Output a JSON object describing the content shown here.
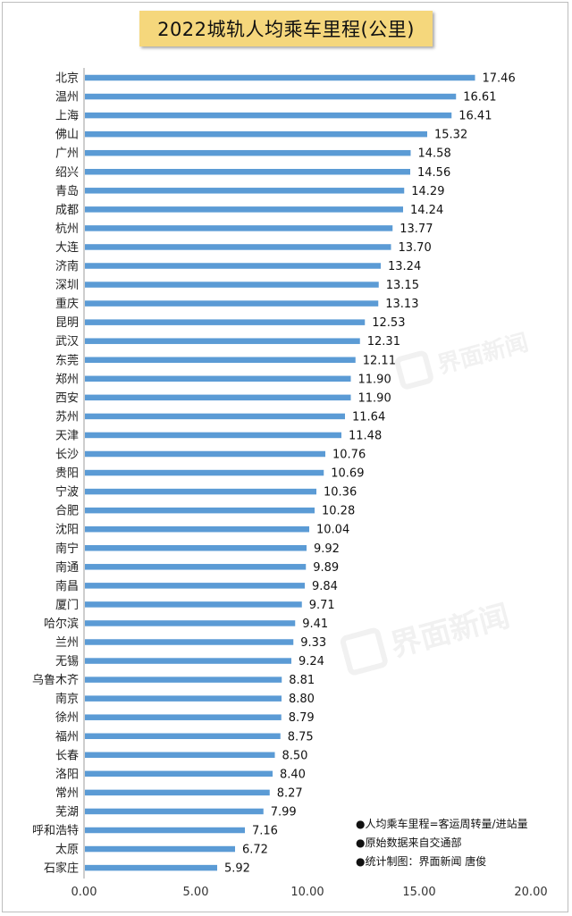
{
  "chart_data": {
    "type": "bar",
    "orientation": "horizontal",
    "title": "2022城轨人均乘车里程(公里)",
    "xlim": [
      0,
      20
    ],
    "x_ticks": [
      "0.00",
      "5.00",
      "10.00",
      "15.00",
      "20.00"
    ],
    "grid": false,
    "bar_color": "#5b9bd5",
    "categories": [
      "北京",
      "温州",
      "上海",
      "佛山",
      "广州",
      "绍兴",
      "青岛",
      "成都",
      "杭州",
      "大连",
      "济南",
      "深圳",
      "重庆",
      "昆明",
      "武汉",
      "东莞",
      "郑州",
      "西安",
      "苏州",
      "天津",
      "长沙",
      "贵阳",
      "宁波",
      "合肥",
      "沈阳",
      "南宁",
      "南通",
      "南昌",
      "厦门",
      "哈尔滨",
      "兰州",
      "无锡",
      "乌鲁木齐",
      "南京",
      "徐州",
      "福州",
      "长春",
      "洛阳",
      "常州",
      "芜湖",
      "呼和浩特",
      "太原",
      "石家庄"
    ],
    "values": [
      17.46,
      16.61,
      16.41,
      15.32,
      14.58,
      14.56,
      14.29,
      14.24,
      13.77,
      13.7,
      13.24,
      13.15,
      13.13,
      12.53,
      12.31,
      12.11,
      11.9,
      11.9,
      11.64,
      11.48,
      10.76,
      10.69,
      10.36,
      10.28,
      10.04,
      9.92,
      9.89,
      9.84,
      9.71,
      9.41,
      9.33,
      9.24,
      8.81,
      8.8,
      8.79,
      8.75,
      8.5,
      8.4,
      8.27,
      7.99,
      7.16,
      6.72,
      5.92
    ],
    "value_labels": [
      "17.46",
      "16.61",
      "16.41",
      "15.32",
      "14.58",
      "14.56",
      "14.29",
      "14.24",
      "13.77",
      "13.70",
      "13.24",
      "13.15",
      "13.13",
      "12.53",
      "12.31",
      "12.11",
      "11.90",
      "11.90",
      "11.64",
      "11.48",
      "10.76",
      "10.69",
      "10.36",
      "10.28",
      "10.04",
      "9.92",
      "9.89",
      "9.84",
      "9.71",
      "9.41",
      "9.33",
      "9.24",
      "8.81",
      "8.80",
      "8.79",
      "8.75",
      "8.50",
      "8.40",
      "8.27",
      "7.99",
      "7.16",
      "6.72",
      "5.92"
    ]
  },
  "notes": [
    "●人均乘车里程=客运周转量/进站量",
    "●原始数据来自交通部",
    "●统计制图：界面新闻 唐俊"
  ],
  "watermark": "界面新闻"
}
